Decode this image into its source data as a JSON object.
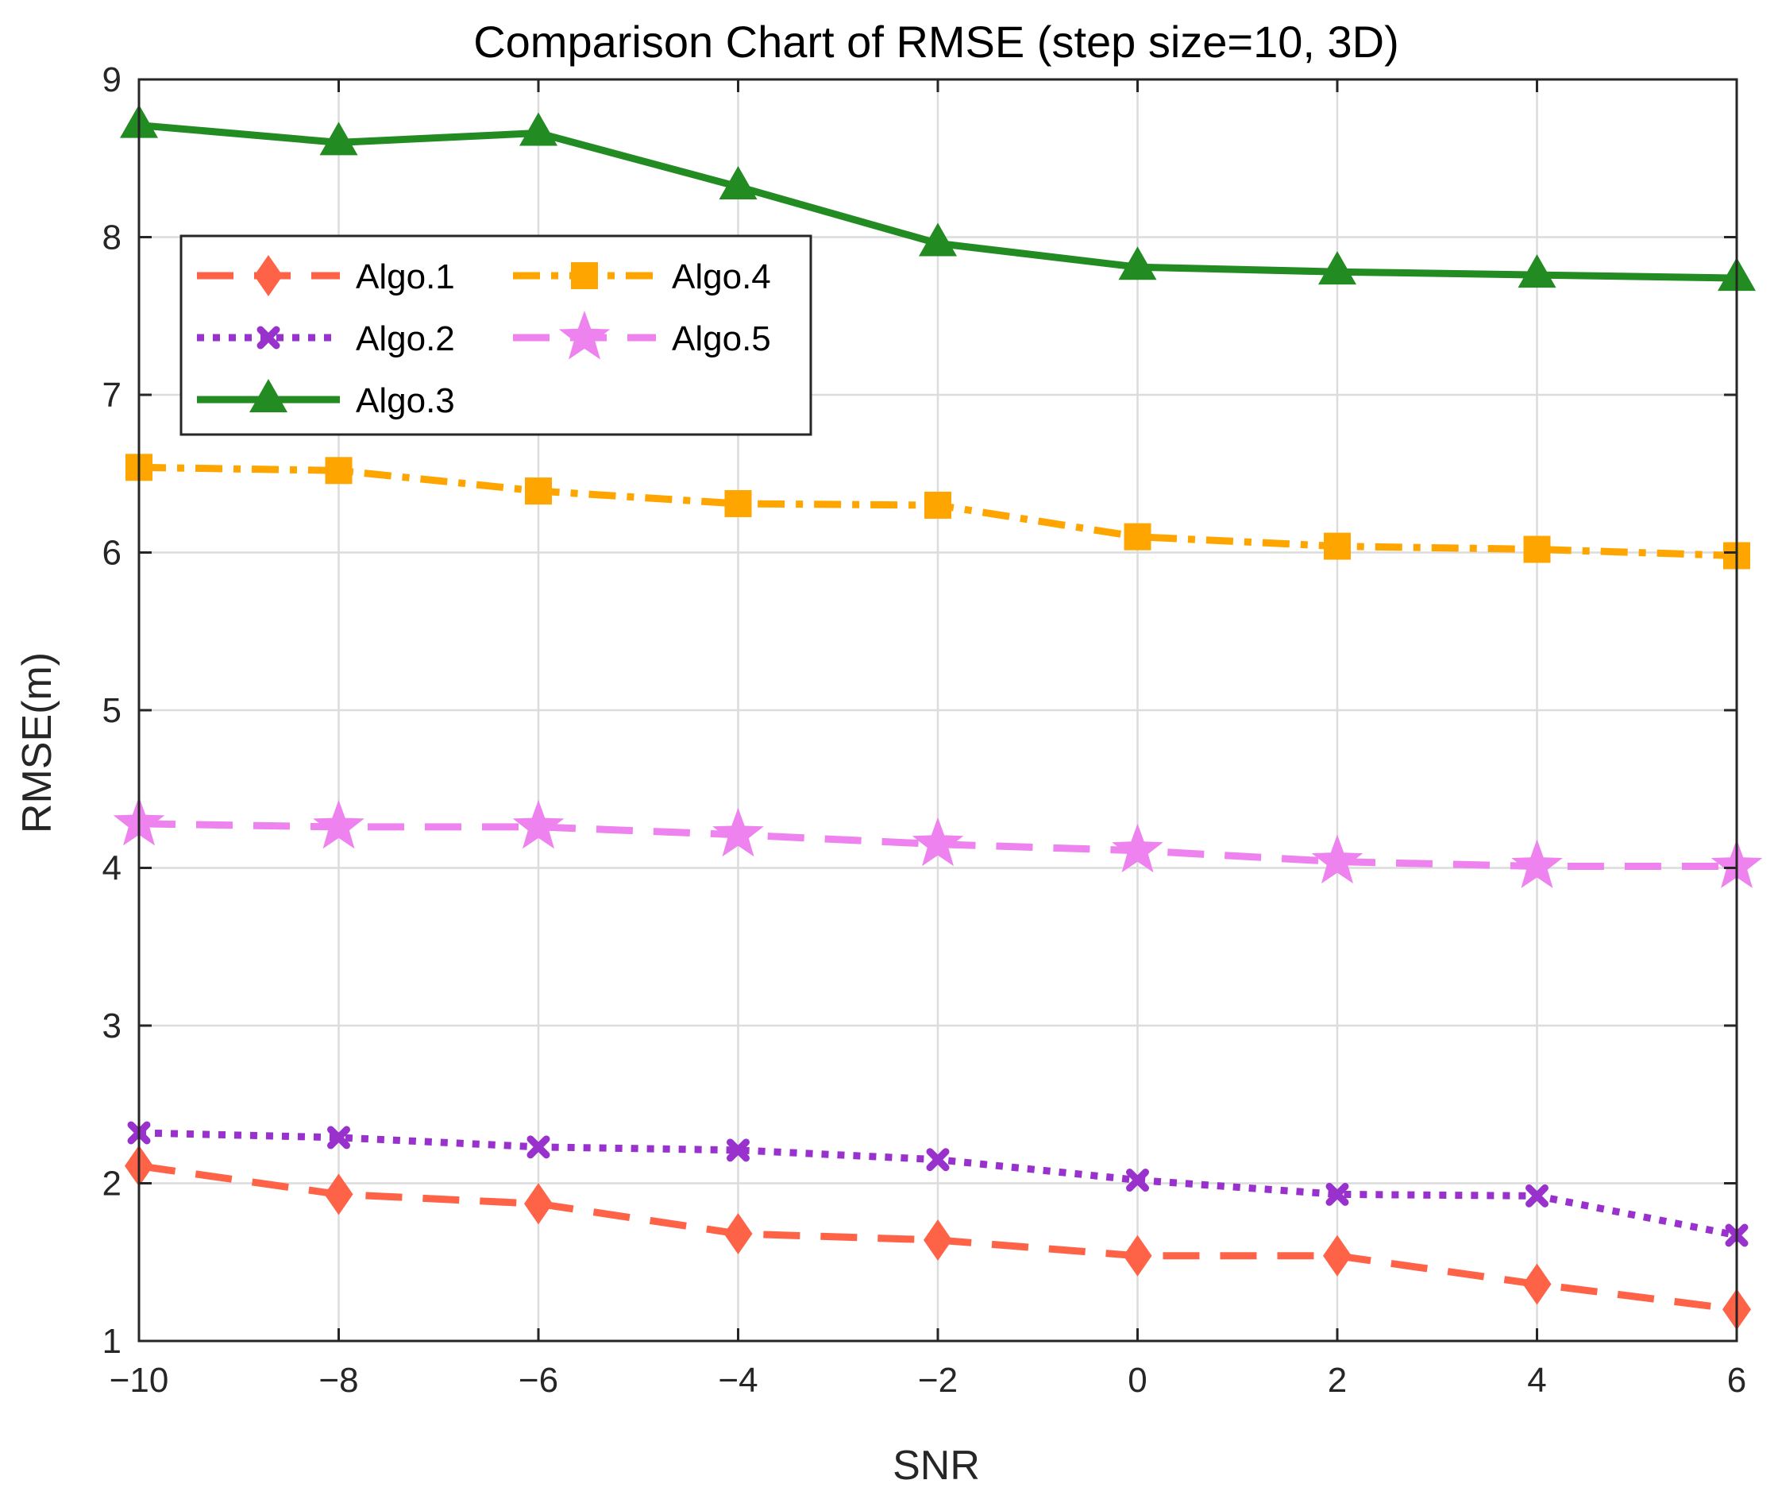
{
  "chart_data": {
    "type": "line",
    "title": "Comparison Chart of RMSE (step size=10, 3D)",
    "xlabel": "SNR",
    "ylabel": "RMSE(m)",
    "xlim": [
      -10,
      6
    ],
    "ylim": [
      1,
      9
    ],
    "grid": true,
    "legend_position": "upper-left",
    "x": [
      -10,
      -8,
      -6,
      -4,
      -2,
      0,
      2,
      4,
      6
    ],
    "x_tick_labels": [
      "−10",
      "−8",
      "−6",
      "−4",
      "−2",
      "0",
      "2",
      "4",
      "6"
    ],
    "y_tick_labels": [
      "1",
      "2",
      "3",
      "4",
      "5",
      "6",
      "7",
      "8",
      "9"
    ],
    "series": [
      {
        "name": "Algo.1",
        "color": "#ff6347",
        "marker": "diamond",
        "style": "dashed",
        "values": [
          2.11,
          1.93,
          1.87,
          1.68,
          1.64,
          1.54,
          1.54,
          1.36,
          1.2
        ]
      },
      {
        "name": "Algo.2",
        "color": "#9932cc",
        "marker": "x",
        "style": "dotted",
        "values": [
          2.32,
          2.29,
          2.23,
          2.21,
          2.15,
          2.02,
          1.93,
          1.92,
          1.67
        ]
      },
      {
        "name": "Algo.3",
        "color": "#228b22",
        "marker": "triangle",
        "style": "solid",
        "values": [
          8.71,
          8.6,
          8.66,
          8.32,
          7.96,
          7.81,
          7.78,
          7.76,
          7.74
        ]
      },
      {
        "name": "Algo.4",
        "color": "#ffa500",
        "marker": "square",
        "style": "dashdot",
        "values": [
          6.54,
          6.52,
          6.39,
          6.31,
          6.3,
          6.1,
          6.04,
          6.02,
          5.98
        ]
      },
      {
        "name": "Algo.5",
        "color": "#ee82ee",
        "marker": "star",
        "style": "dashed",
        "values": [
          4.28,
          4.26,
          4.26,
          4.21,
          4.15,
          4.11,
          4.04,
          4.01,
          4.01
        ]
      }
    ]
  }
}
